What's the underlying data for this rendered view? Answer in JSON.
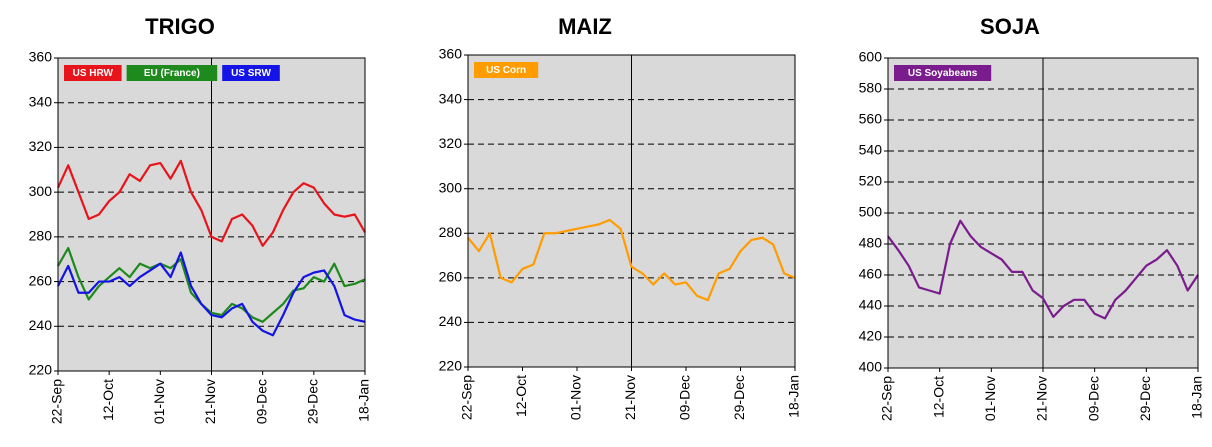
{
  "chart_data": [
    {
      "type": "line",
      "title": "TRIGO",
      "categories": [
        "22-Sep",
        null,
        null,
        null,
        null,
        "12-Oct",
        null,
        null,
        null,
        null,
        "01-Nov",
        null,
        null,
        null,
        null,
        "21-Nov",
        null,
        null,
        null,
        null,
        "09-Dec",
        null,
        null,
        null,
        null,
        "29-Dec",
        null,
        null,
        null,
        null,
        "18-Jan"
      ],
      "series": [
        {
          "name": "US HRW",
          "color": "#e8141b",
          "values": [
            302,
            312,
            300,
            288,
            290,
            296,
            300,
            308,
            305,
            312,
            313,
            306,
            314,
            300,
            292,
            280,
            278,
            288,
            290,
            285,
            276,
            282,
            292,
            300,
            304,
            302,
            295,
            290,
            289,
            290,
            282
          ]
        },
        {
          "name": "EU (France)",
          "color": "#1e8a1e",
          "values": [
            267,
            275,
            262,
            252,
            258,
            262,
            266,
            262,
            268,
            266,
            268,
            266,
            270,
            255,
            250,
            246,
            245,
            250,
            248,
            244,
            242,
            246,
            250,
            256,
            257,
            262,
            260,
            268,
            258,
            259,
            261
          ]
        },
        {
          "name": "US SRW",
          "color": "#1414e6",
          "values": [
            258,
            267,
            255,
            255,
            260,
            260,
            262,
            258,
            262,
            265,
            268,
            262,
            273,
            258,
            250,
            245,
            244,
            248,
            250,
            242,
            238,
            236,
            245,
            255,
            262,
            264,
            265,
            258,
            245,
            243,
            242
          ]
        }
      ],
      "ylim": [
        220,
        360
      ],
      "yticks": [
        220,
        240,
        260,
        280,
        300,
        320,
        340,
        360
      ],
      "grid": true,
      "legend": "upper left"
    },
    {
      "type": "line",
      "title": "MAIZ",
      "categories": [
        "22-Sep",
        null,
        null,
        null,
        null,
        "12-Oct",
        null,
        null,
        null,
        null,
        "01-Nov",
        null,
        null,
        null,
        null,
        "21-Nov",
        null,
        null,
        null,
        null,
        "09-Dec",
        null,
        null,
        null,
        null,
        "29-Dec",
        null,
        null,
        null,
        null,
        "18-Jan"
      ],
      "series": [
        {
          "name": "US Corn",
          "color": "#ff9c00",
          "values": [
            278,
            272,
            280,
            260,
            258,
            264,
            266,
            280,
            280,
            281,
            282,
            283,
            284,
            286,
            282,
            265,
            262,
            257,
            262,
            257,
            258,
            252,
            250,
            262,
            264,
            272,
            277,
            278,
            275,
            262,
            260
          ]
        }
      ],
      "ylim": [
        220,
        360
      ],
      "yticks": [
        220,
        240,
        260,
        280,
        300,
        320,
        340,
        360
      ],
      "grid": true,
      "legend": "upper left"
    },
    {
      "type": "line",
      "title": "SOJA",
      "categories": [
        "22-Sep",
        null,
        null,
        null,
        null,
        "12-Oct",
        null,
        null,
        null,
        null,
        "01-Nov",
        null,
        null,
        null,
        null,
        "21-Nov",
        null,
        null,
        null,
        null,
        "09-Dec",
        null,
        null,
        null,
        null,
        "29-Dec",
        null,
        null,
        null,
        null,
        "18-Jan"
      ],
      "series": [
        {
          "name": "US Soyabeans",
          "color": "#7b1c8e",
          "values": [
            485,
            476,
            466,
            452,
            450,
            448,
            480,
            495,
            485,
            478,
            474,
            470,
            462,
            462,
            450,
            445,
            433,
            440,
            444,
            444,
            435,
            432,
            444,
            450,
            458,
            466,
            470,
            476,
            466,
            450,
            460
          ]
        }
      ],
      "ylim": [
        400,
        600
      ],
      "yticks": [
        400,
        420,
        440,
        460,
        480,
        500,
        520,
        540,
        560,
        580,
        600
      ],
      "grid": true,
      "legend": "upper left"
    }
  ]
}
